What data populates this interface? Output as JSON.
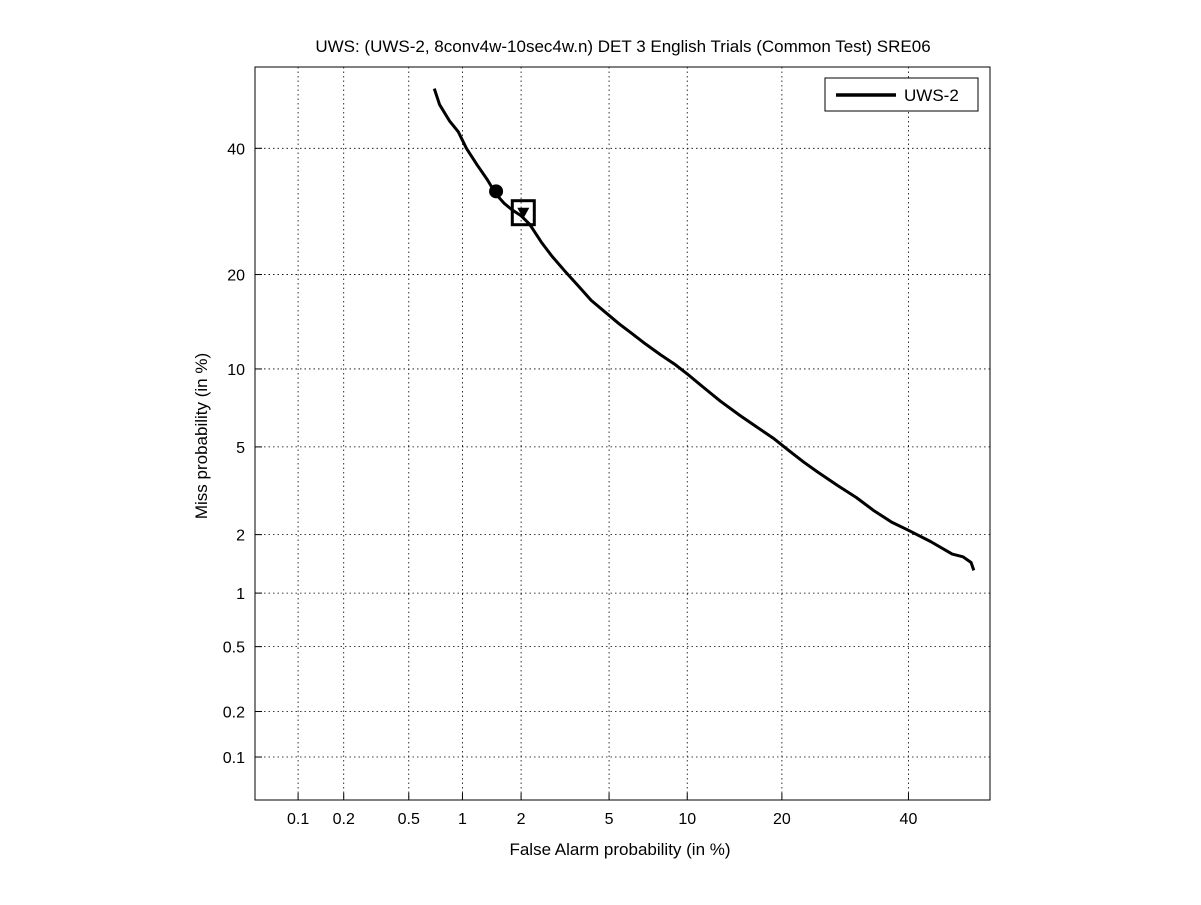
{
  "chart_data": {
    "type": "line",
    "title": "UWS: (UWS-2, 8conv4w-10sec4w.n) DET 3 English Trials (Common Test) SRE06",
    "xlabel": "False Alarm probability (in %)",
    "ylabel": "Miss probability (in %)",
    "x_scale": "probit",
    "y_scale": "probit",
    "xlim": [
      0.05,
      55
    ],
    "ylim": [
      0.05,
      55
    ],
    "x_ticks": [
      0.1,
      0.2,
      0.5,
      1,
      2,
      5,
      10,
      20,
      40
    ],
    "x_tick_labels": [
      "0.1",
      "0.2",
      "0.5",
      "1",
      "2",
      "5",
      "10",
      "20",
      "40"
    ],
    "y_ticks": [
      0.1,
      0.2,
      0.5,
      1,
      2,
      5,
      10,
      20,
      40
    ],
    "y_tick_labels": [
      "0.1",
      "0.2",
      "0.5",
      "1",
      "2",
      "5",
      "10",
      "20",
      "40"
    ],
    "grid": true,
    "legend_position": "top-right",
    "series": [
      {
        "name": "UWS-2",
        "color": "#000000",
        "x": [
          0.7,
          0.75,
          0.85,
          0.95,
          1.05,
          1.2,
          1.35,
          1.5,
          1.65,
          1.8,
          2.0,
          2.2,
          2.5,
          2.8,
          3.2,
          3.7,
          4.2,
          4.8,
          5.5,
          6.2,
          7.0,
          8.0,
          9.0,
          10.0,
          11.5,
          13.0,
          15.0,
          17.0,
          19.0,
          21.0,
          23.0,
          25.0,
          28.0,
          31.0,
          34.0,
          37.0,
          40.0,
          44.0,
          48.0,
          50.0,
          51.5,
          52.0
        ],
        "y": [
          51,
          48,
          45,
          43,
          40,
          37,
          34.5,
          32,
          30.5,
          29.5,
          28.5,
          27.2,
          24.5,
          22.5,
          20.5,
          18.5,
          16.8,
          15.5,
          14.2,
          13.2,
          12.2,
          11.2,
          10.4,
          9.6,
          8.5,
          7.6,
          6.7,
          6.0,
          5.4,
          4.8,
          4.3,
          3.9,
          3.4,
          3.0,
          2.6,
          2.3,
          2.1,
          1.85,
          1.6,
          1.55,
          1.45,
          1.32
        ]
      }
    ],
    "markers": [
      {
        "name": "circle",
        "x": 1.5,
        "y": 32.5
      },
      {
        "name": "square",
        "x": 2.05,
        "y": 29.0
      },
      {
        "name": "triangle-down",
        "x": 2.05,
        "y": 29.0
      }
    ]
  }
}
